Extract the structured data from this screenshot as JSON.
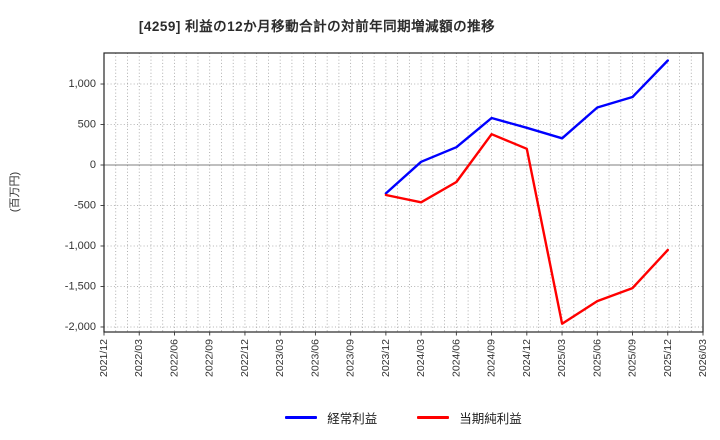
{
  "title": "[4259]  利益の12か月移動合計の対前年同期増減額の推移",
  "ylabel": "(百万円)",
  "legend": {
    "items": [
      {
        "label": "経常利益",
        "color": "#0000ff"
      },
      {
        "label": "当期純利益",
        "color": "#ff0000"
      }
    ]
  },
  "chart_data": {
    "type": "line",
    "title": "[4259] 利益の12か月移動合計の対前年同期増減額の推移",
    "xlabel": "",
    "ylabel": "(百万円)",
    "categories": [
      "2021/12",
      "2022/03",
      "2022/06",
      "2022/09",
      "2022/12",
      "2023/03",
      "2023/06",
      "2023/09",
      "2023/12",
      "2024/03",
      "2024/06",
      "2024/09",
      "2024/12",
      "2025/03",
      "2025/06",
      "2025/09",
      "2025/12",
      "2026/03"
    ],
    "y_ticks": [
      1000,
      500,
      0,
      -500,
      -1000,
      -1500,
      -2000
    ],
    "ylim": [
      -2062,
      1383
    ],
    "grid": true,
    "minor_x_grid_per_interval": 3,
    "legend_position": "bottom",
    "series": [
      {
        "name": "経常利益",
        "color": "#0000ff",
        "x": [
          "2023/12",
          "2024/03",
          "2024/06",
          "2024/09",
          "2024/12",
          "2025/03",
          "2025/06",
          "2025/09",
          "2025/12"
        ],
        "values": [
          -350,
          40,
          220,
          580,
          460,
          330,
          710,
          840,
          1290
        ]
      },
      {
        "name": "当期純利益",
        "color": "#ff0000",
        "x": [
          "2023/12",
          "2024/03",
          "2024/06",
          "2024/09",
          "2024/12",
          "2025/03",
          "2025/06",
          "2025/09",
          "2025/12"
        ],
        "values": [
          -370,
          -460,
          -210,
          380,
          200,
          -1960,
          -1680,
          -1520,
          -1050
        ]
      }
    ]
  }
}
